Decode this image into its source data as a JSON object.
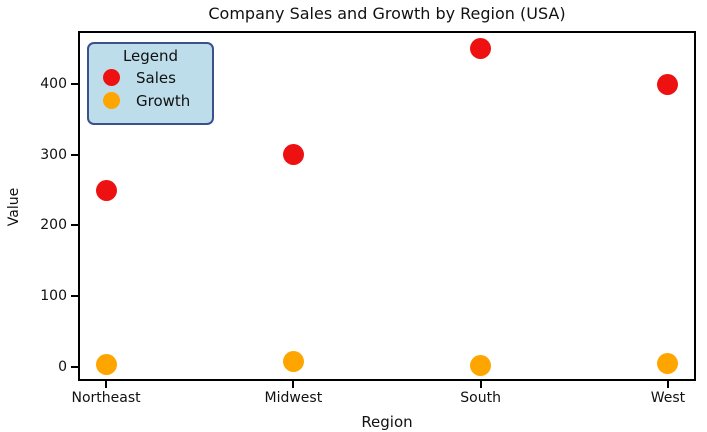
{
  "figure": {
    "title": "Company Sales and Growth by Region (USA)",
    "xlabel": "Region",
    "ylabel": "Value"
  },
  "legend": {
    "title": "Legend",
    "entries": [
      {
        "label": "Sales",
        "color": "#ee1111"
      },
      {
        "label": "Growth",
        "color": "#ffa500"
      }
    ],
    "face_color": "#bdddea",
    "edge_color": "#3c508c",
    "position": "upper left"
  },
  "chart_data": {
    "type": "scatter",
    "title": "Company Sales and Growth by Region (USA)",
    "xlabel": "Region",
    "ylabel": "Value",
    "categories": [
      "Northeast",
      "Midwest",
      "South",
      "West"
    ],
    "series": [
      {
        "name": "Sales",
        "color": "#ee1111",
        "values": [
          250,
          300,
          450,
          400
        ]
      },
      {
        "name": "Growth",
        "color": "#ffa500",
        "values": [
          4,
          7,
          2,
          5
        ]
      }
    ],
    "yticks": [
      0,
      100,
      200,
      300,
      400
    ],
    "ylim": [
      -20,
      475
    ],
    "grid": false,
    "legend_position": "upper left"
  }
}
